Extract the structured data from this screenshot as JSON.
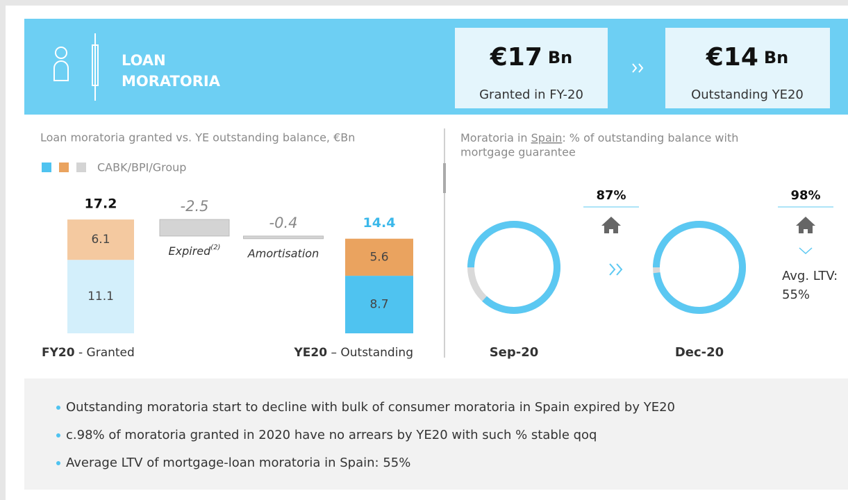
{
  "header": {
    "title": [
      "LOAN",
      "MORATORIA"
    ],
    "kpis": [
      {
        "value": "€17",
        "unit": "Bn",
        "label": "Granted in FY-20"
      },
      {
        "value": "€14",
        "unit": "Bn",
        "label": "Outstanding YE20"
      }
    ]
  },
  "chart_data": [
    {
      "type": "waterfall",
      "title": "Loan moratoria granted vs. YE outstanding balance, €Bn",
      "legend": "CABK/BPI/Group",
      "categories": [
        {
          "bold": "FY20",
          "text": " - Granted"
        },
        {
          "text": "Expired",
          "sup": "(2)"
        },
        {
          "text": "Amortisation"
        },
        {
          "bold": "YE20",
          "text": " – Outstanding"
        }
      ],
      "series": [
        {
          "name": "CABK",
          "color": "#4fc3f0",
          "colors": [
            "#d3effb",
            null,
            null,
            "#4fc3f0"
          ],
          "values": [
            11.1,
            null,
            null,
            8.7
          ]
        },
        {
          "name": "BPI",
          "color": "#eaa35f",
          "colors": [
            "#f4c9a0",
            null,
            null,
            "#eaa35f"
          ],
          "values": [
            6.1,
            null,
            null,
            5.6
          ]
        },
        {
          "name": "Group",
          "color": "#d4d4d4",
          "colors": [
            null,
            "#d4d4d4",
            "#d4d4d4",
            null
          ],
          "values": [
            null,
            -2.5,
            -0.4,
            null
          ]
        }
      ],
      "totals": [
        17.2,
        null,
        null,
        14.4
      ],
      "total_colors": [
        "#111111",
        null,
        null,
        "#3bb8ea"
      ]
    },
    {
      "type": "donut",
      "title": [
        "Moratoria in ",
        "Spain",
        ": % of outstanding balance with mortgage guarantee"
      ],
      "categories": [
        "Sep-20",
        "Dec-20"
      ],
      "values": [
        87,
        98
      ],
      "value_labels": [
        "87%",
        "98%"
      ],
      "color": "#5bc8f2",
      "track_color": "#d9d9d9",
      "annotation": [
        "Avg. LTV:",
        "55%"
      ]
    }
  ],
  "bullets": [
    "Outstanding moratoria start to decline with bulk of consumer moratoria in Spain expired by YE20",
    "c.98% of moratoria granted in 2020 have no arrears by YE20 with such % stable qoq",
    "Average LTV of mortgage-loan moratoria in Spain: 55%"
  ]
}
